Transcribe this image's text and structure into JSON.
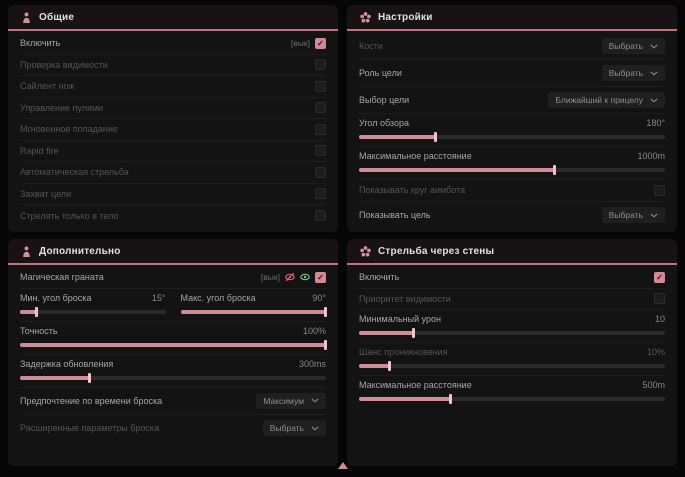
{
  "colors": {
    "accent": "#c2737e",
    "panel_bg": "#131313",
    "checkbox_checked": "#d38a96",
    "slider_fill": "#cf8d98",
    "slider_handle": "#eec3c9",
    "enabled_icon_green": "#7bc47f",
    "disabled_icon_red": "#e0607a",
    "marker_pink": "#d48a96"
  },
  "panels": [
    {
      "id": "general",
      "title": "Общие",
      "icon": "person-icon",
      "rows": [
        {
          "type": "checkbox",
          "label": "Включить",
          "suffix": "[вык]",
          "checked": true,
          "dim": false
        },
        {
          "type": "checkbox",
          "label": "Проверка видимости",
          "checked": false,
          "dim": true
        },
        {
          "type": "checkbox",
          "label": "Сайлент нож",
          "checked": false,
          "dim": true
        },
        {
          "type": "checkbox",
          "label": "Управление пулями",
          "checked": false,
          "dim": true
        },
        {
          "type": "checkbox",
          "label": "Мгновенное попадание",
          "checked": false,
          "dim": true
        },
        {
          "type": "checkbox",
          "label": "Rapid fire",
          "checked": false,
          "dim": true
        },
        {
          "type": "checkbox",
          "label": "Автоматическая стрельба",
          "checked": false,
          "dim": true
        },
        {
          "type": "checkbox",
          "label": "Захват цели",
          "checked": false,
          "dim": true
        },
        {
          "type": "checkbox",
          "label": "Стрелять только в тело",
          "checked": false,
          "dim": true
        }
      ]
    },
    {
      "id": "settings",
      "title": "Настройки",
      "icon": "flower-icon",
      "rows": [
        {
          "type": "dropdown",
          "label": "Кости",
          "value": "Выбрать",
          "dim": true
        },
        {
          "type": "dropdown",
          "label": "Роль цели",
          "value": "Выбрать",
          "dim": false
        },
        {
          "type": "dropdown",
          "label": "Выбор цели",
          "value": "Ближайший к прицелу",
          "dim": false
        },
        {
          "type": "slider",
          "label": "Угол обзора",
          "value": "180°",
          "fill": 25,
          "dim": false
        },
        {
          "type": "slider",
          "label": "Максимальное расстояние",
          "value": "1000m",
          "fill": 64,
          "dim": false
        },
        {
          "type": "checkbox",
          "label": "Показывать круг аимбота",
          "checked": false,
          "dim": true
        },
        {
          "type": "dropdown",
          "label": "Показывать цель",
          "value": "Выбрать",
          "dim": false
        }
      ]
    },
    {
      "id": "additional",
      "title": "Дополнительно",
      "icon": "person-icon",
      "rows": [
        {
          "type": "checkbox",
          "label": "Магическая граната",
          "suffix": "[вык]",
          "checked": true,
          "dim": false,
          "icons": [
            "eye-off-icon",
            "eye-on-icon"
          ]
        },
        {
          "type": "slider2",
          "sliders": [
            {
              "label": "Мин. угол броска",
              "value": "15°",
              "fill": 12
            },
            {
              "label": "Макс. угол броска",
              "value": "90°",
              "fill": 100
            }
          ]
        },
        {
          "type": "slider",
          "label": "Точность",
          "value": "100%",
          "fill": 100,
          "dim": false
        },
        {
          "type": "slider",
          "label": "Задержка обновления",
          "value": "300ms",
          "fill": 23,
          "dim": false
        },
        {
          "type": "dropdown",
          "label": "Предпочтение по времени броска",
          "value": "Максимум",
          "dim": false
        },
        {
          "type": "dropdown",
          "label": "Расширенные параметры броска",
          "value": "Выбрать",
          "dim": true
        }
      ]
    },
    {
      "id": "wallbang",
      "title": "Стрельба через стены",
      "icon": "flower-icon",
      "rows": [
        {
          "type": "checkbox",
          "label": "Включить",
          "checked": true,
          "dim": false
        },
        {
          "type": "checkbox",
          "label": "Приоритет видимости",
          "checked": false,
          "dim": true
        },
        {
          "type": "slider",
          "label": "Минимальный урон",
          "value": "10",
          "fill": 18,
          "dim": false
        },
        {
          "type": "slider",
          "label": "Шанс проникновения",
          "value": "10%",
          "fill": 10,
          "dim": true
        },
        {
          "type": "slider",
          "label": "Максимальное расстояние",
          "value": "500m",
          "fill": 30,
          "dim": false
        }
      ]
    }
  ]
}
